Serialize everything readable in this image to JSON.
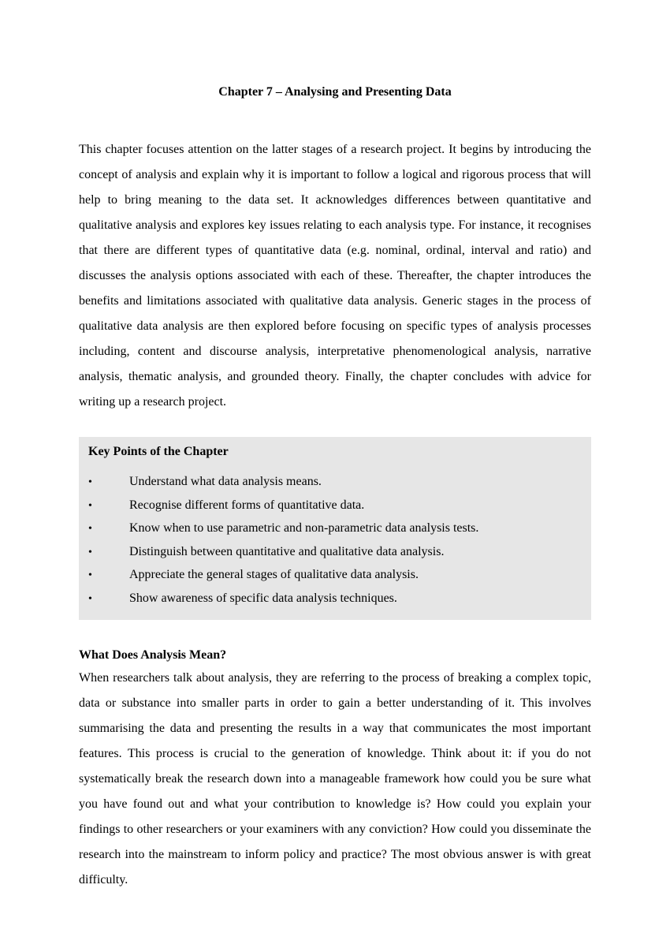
{
  "title": "Chapter 7 – Analysing and Presenting Data",
  "intro": "This chapter focuses attention on the latter stages of a research project. It begins by introducing the concept of analysis and explain why it is important to follow a logical and rigorous process that will help to bring meaning to the data set. It acknowledges differences between quantitative and qualitative analysis and explores key issues relating to each analysis type. For instance, it recognises that there are different types of quantitative data (e.g. nominal, ordinal, interval and ratio) and discusses the analysis options associated with each of these. Thereafter, the chapter introduces the benefits and limitations associated with qualitative data analysis. Generic stages in the process of qualitative data analysis are then explored before focusing on specific types of analysis processes including, content and discourse analysis, interpretative phenomenological analysis, narrative analysis, thematic analysis, and grounded theory. Finally, the chapter concludes with advice for writing up a research project.",
  "keyPoints": {
    "heading": "Key Points of the Chapter",
    "items": [
      "Understand what data analysis means.",
      "Recognise different forms of quantitative data.",
      "Know when to use parametric and non-parametric data analysis tests.",
      "Distinguish between quantitative and qualitative data analysis.",
      "Appreciate the general stages of qualitative data analysis.",
      "Show awareness of specific data analysis techniques."
    ]
  },
  "section1": {
    "heading": "What Does Analysis Mean?",
    "body": "When researchers talk about analysis, they are referring to the process of breaking a complex topic, data or substance into smaller parts in order to gain a better understanding of it. This involves summarising the data and presenting the results in a way that communicates the most important features. This process is crucial to the generation of knowledge. Think about it: if you do not systematically break the research down into a manageable framework how could you be sure what you have found out and what your contribution to knowledge is? How could you explain your findings to other researchers or your examiners with any conviction? How could you disseminate the research into the mainstream to inform policy and practice? The most obvious answer is with great difficulty."
  },
  "colors": {
    "pageBg": "#ffffff",
    "text": "#000000",
    "boxBg": "#e6e6e6"
  },
  "typography": {
    "fontFamily": "Times New Roman",
    "bodySize": 16,
    "lineHeight": 2.0
  }
}
